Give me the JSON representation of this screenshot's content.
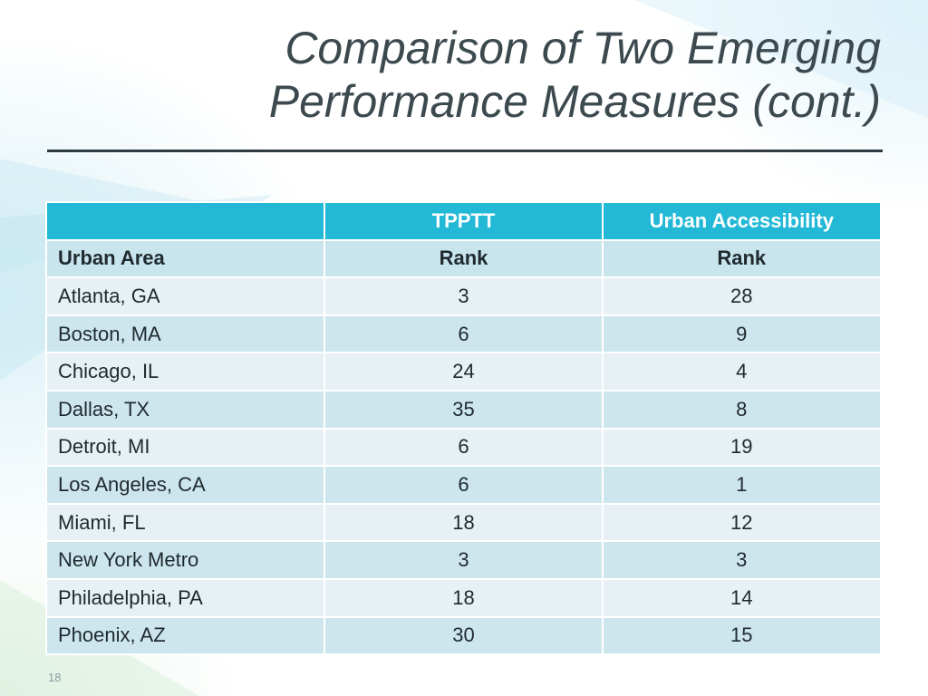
{
  "slide": {
    "title_line1": "Comparison of Two Emerging",
    "title_line2": "Performance Measures (cont.)",
    "page_number": "18"
  },
  "table": {
    "header": [
      "",
      "TPPTT",
      "Urban Accessibility"
    ],
    "subheader": [
      "Urban Area",
      "Rank",
      "Rank"
    ],
    "rows": [
      [
        "Atlanta, GA",
        "3",
        "28"
      ],
      [
        "Boston, MA",
        "6",
        "9"
      ],
      [
        "Chicago, IL",
        "24",
        "4"
      ],
      [
        "Dallas, TX",
        "35",
        "8"
      ],
      [
        "Detroit, MI",
        "6",
        "19"
      ],
      [
        "Los Angeles, CA",
        "6",
        "1"
      ],
      [
        "Miami, FL",
        "18",
        "12"
      ],
      [
        "New York Metro",
        "3",
        "3"
      ],
      [
        "Philadelphia, PA",
        "18",
        "14"
      ],
      [
        "Phoenix, AZ",
        "30",
        "15"
      ]
    ]
  },
  "colors": {
    "header_bg": "#22b8d6",
    "row_light": "#e7f1f5",
    "row_dark": "#cde6ee",
    "title_text": "#3c4a50"
  }
}
